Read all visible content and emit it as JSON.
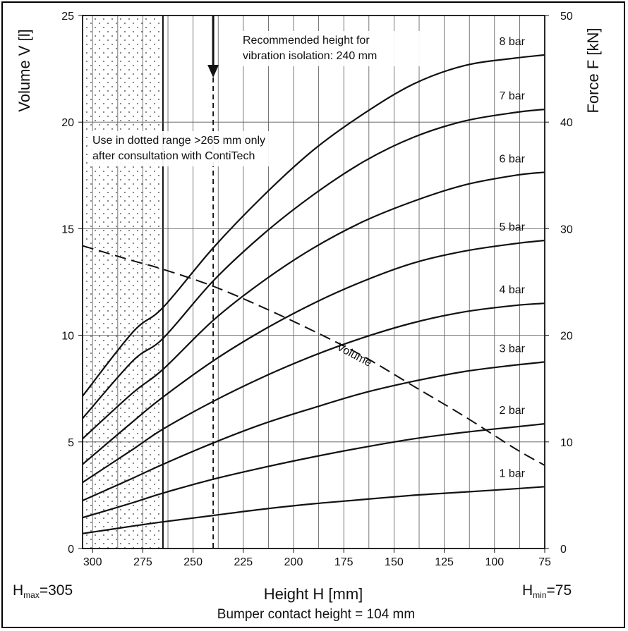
{
  "chart_data": {
    "type": "line",
    "xlabel": "Height H [mm]",
    "ylabel_left": "Volume V [l]",
    "ylabel_right": "Force F [kN]",
    "x_ticks": [
      "300",
      "275",
      "250",
      "225",
      "200",
      "175",
      "150",
      "125",
      "100",
      "75"
    ],
    "x_tick_values": [
      300,
      275,
      250,
      225,
      200,
      175,
      150,
      125,
      100,
      75
    ],
    "xlim": [
      305,
      75
    ],
    "y_left_ticks": [
      "0",
      "5",
      "10",
      "15",
      "20",
      "25"
    ],
    "y_left_lim": [
      0,
      25
    ],
    "y_right_ticks": [
      "0",
      "10",
      "20",
      "30",
      "40",
      "50"
    ],
    "y_right_lim": [
      0,
      50
    ],
    "grid": true,
    "x": [
      305,
      280,
      265,
      240,
      215,
      190,
      165,
      140,
      115,
      90,
      75
    ],
    "series": [
      {
        "name": "1 bar",
        "axis": "force",
        "values": [
          1.4,
          2.1,
          2.5,
          3.1,
          3.7,
          4.2,
          4.6,
          5.0,
          5.3,
          5.6,
          5.8
        ]
      },
      {
        "name": "2 bar",
        "axis": "force",
        "values": [
          2.9,
          4.3,
          5.2,
          6.5,
          7.6,
          8.6,
          9.5,
          10.3,
          10.9,
          11.4,
          11.7
        ]
      },
      {
        "name": "3 bar",
        "axis": "force",
        "values": [
          4.5,
          6.6,
          7.9,
          9.9,
          11.7,
          13.2,
          14.6,
          15.7,
          16.6,
          17.2,
          17.5
        ]
      },
      {
        "name": "4 bar",
        "axis": "force",
        "values": [
          6.2,
          9.3,
          11.2,
          13.8,
          16.1,
          18.1,
          19.8,
          21.2,
          22.2,
          22.8,
          23.0
        ]
      },
      {
        "name": "5 bar",
        "axis": "force",
        "values": [
          7.9,
          11.9,
          14.2,
          17.6,
          20.5,
          23.0,
          25.1,
          26.8,
          27.9,
          28.6,
          28.9
        ]
      },
      {
        "name": "6 bar",
        "axis": "force",
        "values": [
          10.3,
          14.6,
          16.8,
          21.4,
          25.1,
          28.2,
          30.7,
          32.6,
          34.1,
          35.0,
          35.3
        ]
      },
      {
        "name": "7 bar",
        "axis": "force",
        "values": [
          12.2,
          17.6,
          19.7,
          25.1,
          29.5,
          33.2,
          36.3,
          38.6,
          40.1,
          40.9,
          41.2
        ]
      },
      {
        "name": "8 bar",
        "axis": "force",
        "values": [
          14.3,
          20.3,
          22.6,
          28.2,
          33.1,
          37.4,
          40.8,
          43.6,
          45.3,
          46.0,
          46.3
        ]
      },
      {
        "name": "Volume",
        "axis": "volume",
        "values": [
          14.2,
          13.5,
          13.1,
          12.3,
          11.3,
          10.2,
          9.0,
          7.6,
          6.2,
          4.7,
          3.9
        ]
      }
    ],
    "dotted_range": [
      305,
      265
    ],
    "recommended_height": 240,
    "annotations": {
      "recommended": [
        "Recommended height for",
        "vibration isolation: 240 mm"
      ],
      "dotted_note": [
        "Use in dotted range >265 mm only",
        "after consultation with ContiTech"
      ],
      "volume_label": "Volume",
      "hmax_value": "=305",
      "hmin_value": "=75",
      "bumper": "Bumper contact height = 104 mm"
    }
  },
  "colors": {
    "ink": "#111111",
    "grid": "#555555",
    "background": "#ffffff"
  }
}
